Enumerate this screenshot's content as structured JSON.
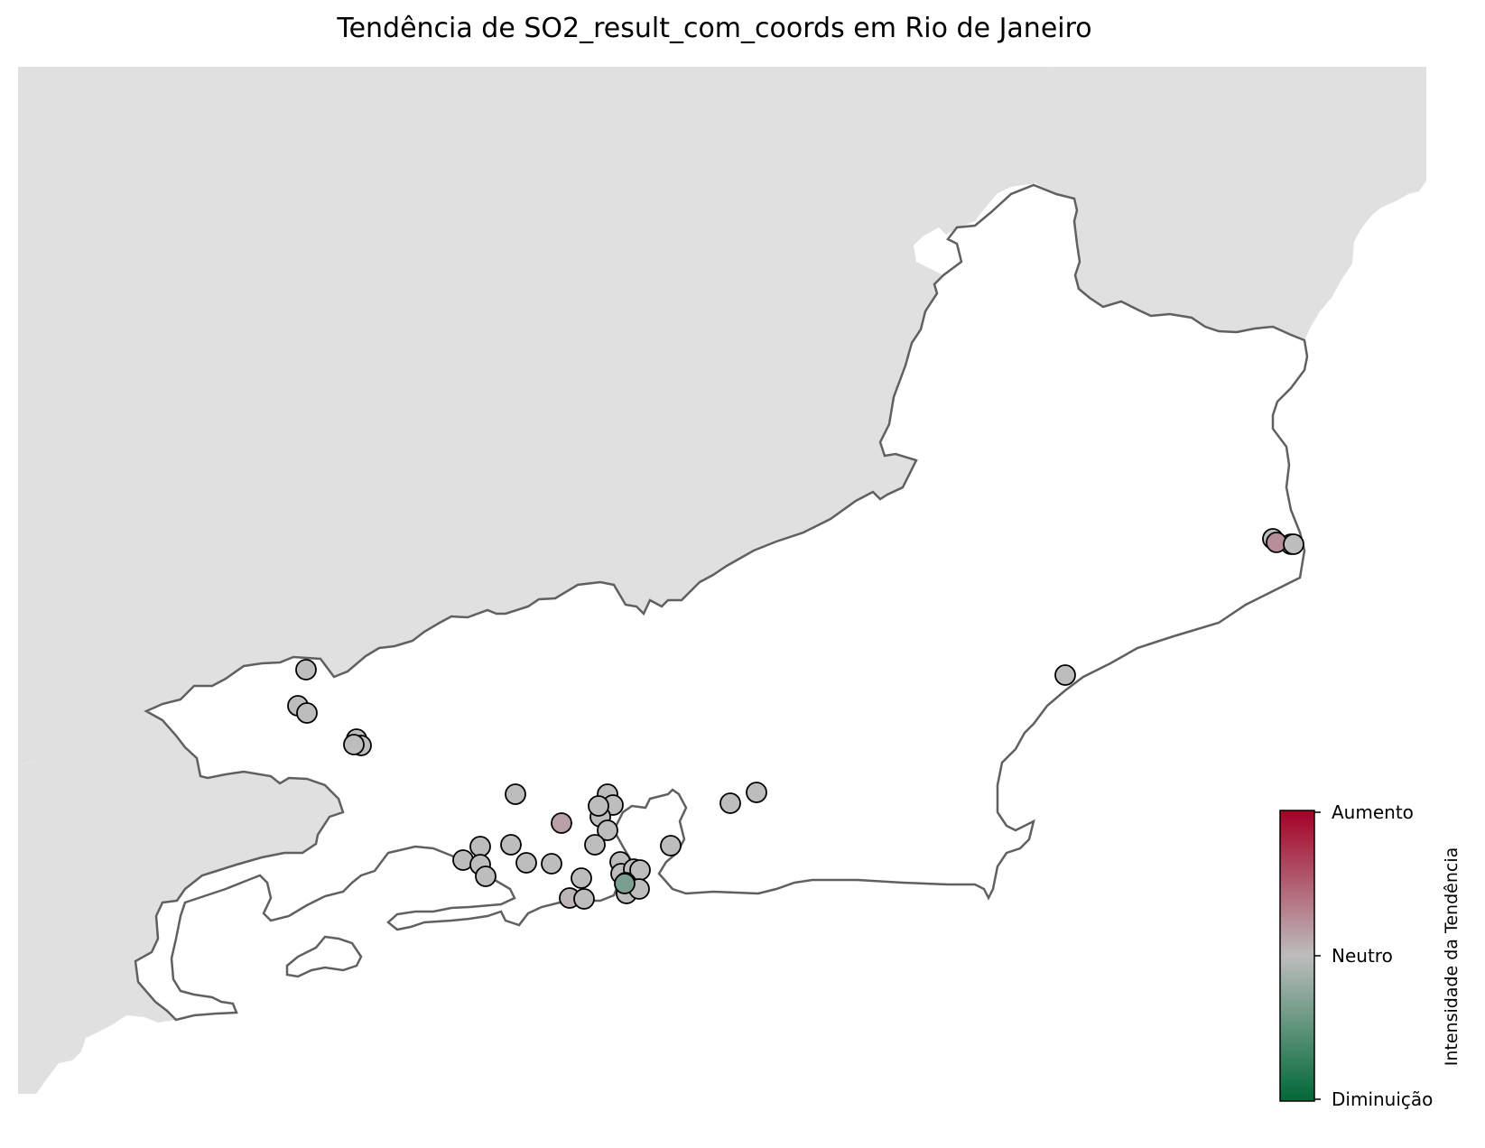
{
  "title": "Tendência de SO2_result_com_coords em Rio de Janeiro",
  "colors": {
    "neighbor_land": "#e0e0e0",
    "state_fill": "#ffffff",
    "state_border": "#606060",
    "marker_edge": "#000000",
    "scale_low": "#006837",
    "scale_mid": "#bdbdbd",
    "scale_high": "#a50026"
  },
  "colorbar": {
    "label": "Intensidade da Tendência",
    "ticks": [
      {
        "label": "Aumento",
        "value": 1
      },
      {
        "label": "Neutro",
        "value": 0
      },
      {
        "label": "Diminuição",
        "value": -1
      }
    ]
  },
  "stations": [
    {
      "trend": 0.0
    },
    {
      "trend": 0.0
    },
    {
      "trend": 0.0
    },
    {
      "trend": 0.0
    },
    {
      "trend": 0.0
    },
    {
      "trend": 0.0
    },
    {
      "trend": 0.0
    },
    {
      "trend": 0.15
    },
    {
      "trend": 0.0
    },
    {
      "trend": 0.0
    },
    {
      "trend": 0.0
    },
    {
      "trend": 0.0
    },
    {
      "trend": 0.0
    },
    {
      "trend": 0.0
    },
    {
      "trend": 0.0
    },
    {
      "trend": 0.0
    },
    {
      "trend": 0.0
    },
    {
      "trend": 0.0
    },
    {
      "trend": 0.0
    },
    {
      "trend": 0.0
    },
    {
      "trend": 0.0
    },
    {
      "trend": 0.0
    },
    {
      "trend": 0.05
    },
    {
      "trend": 0.0
    },
    {
      "trend": 0.0
    },
    {
      "trend": 0.0
    },
    {
      "trend": 0.0
    },
    {
      "trend": 0.0
    },
    {
      "trend": 0.0
    },
    {
      "trend": 0.0
    },
    {
      "trend": 0.0
    },
    {
      "trend": -0.35
    },
    {
      "trend": 0.0
    },
    {
      "trend": 0.0
    },
    {
      "trend": 0.0
    },
    {
      "trend": 0.0
    },
    {
      "trend": 0.0
    },
    {
      "trend": 0.0
    },
    {
      "trend": 0.25
    },
    {
      "trend": 0.0
    },
    {
      "trend": 0.0
    }
  ]
}
